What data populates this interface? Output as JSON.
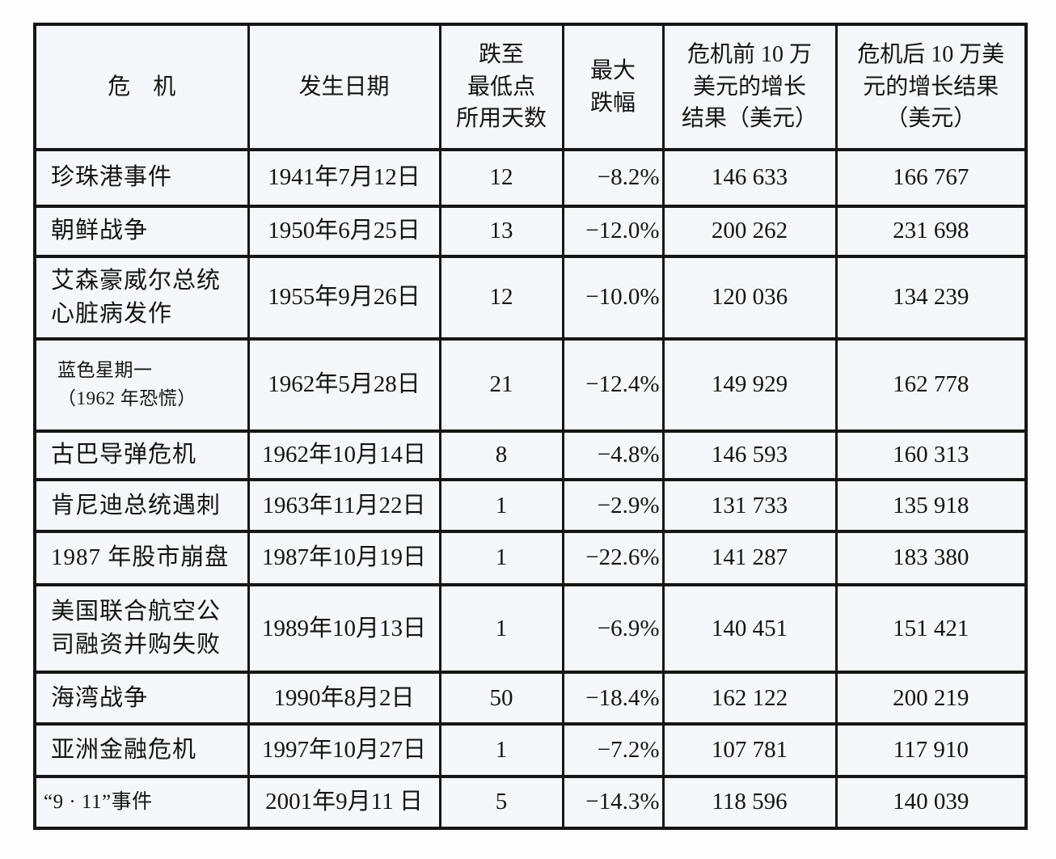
{
  "page": {
    "background_color": "#fdfdfe",
    "cell_background_color": "#f6f7fa",
    "border_color": "#161616",
    "text_color": "#141414"
  },
  "table": {
    "headers": [
      {
        "id": "crisis",
        "label": "危　机"
      },
      {
        "id": "date",
        "label": "发生日期"
      },
      {
        "id": "days",
        "label": "跌至\n最低点\n所用天数"
      },
      {
        "id": "drop",
        "label": "最大\n跌幅"
      },
      {
        "id": "before",
        "label": "危机前 10 万\n美元的增长\n结果（美元）"
      },
      {
        "id": "after",
        "label": "危机后 10 万美\n元的增长结果\n（美元）"
      }
    ],
    "rows": [
      {
        "crisis": "珍珠港事件",
        "date": "1941年7月12日",
        "days": "12",
        "drop": "−8.2%",
        "before": "146 633",
        "after": "166 767",
        "size": "normal"
      },
      {
        "crisis": "朝鲜战争",
        "date": "1950年6月25日",
        "days": "13",
        "drop": "−12.0%",
        "before": "200 262",
        "after": "231 698",
        "size": "normal"
      },
      {
        "crisis": "艾森豪威尔总统\n心脏病发作",
        "date": "1955年9月26日",
        "days": "12",
        "drop": "−10.0%",
        "before": "120 036",
        "after": "134 239",
        "size": "normal"
      },
      {
        "crisis": "蓝色星期一\n（1962 年恐慌）",
        "date": "1962年5月28日",
        "days": "21",
        "drop": "−12.4%",
        "before": "149 929",
        "after": "162 778",
        "size": "small"
      },
      {
        "crisis": "古巴导弹危机",
        "date": "1962年10月14日",
        "days": "8",
        "drop": "−4.8%",
        "before": "146 593",
        "after": "160 313",
        "size": "normal"
      },
      {
        "crisis": "肯尼迪总统遇刺",
        "date": "1963年11月22日",
        "days": "1",
        "drop": "−2.9%",
        "before": "131 733",
        "after": "135 918",
        "size": "normal"
      },
      {
        "crisis": "1987 年股市崩盘",
        "date": "1987年10月19日",
        "days": "1",
        "drop": "−22.6%",
        "before": "141 287",
        "after": "183 380",
        "size": "normal"
      },
      {
        "crisis": "美国联合航空公\n司融资并购失败",
        "date": "1989年10月13日",
        "days": "1",
        "drop": "−6.9%",
        "before": "140 451",
        "after": "151 421",
        "size": "normal"
      },
      {
        "crisis": "海湾战争",
        "date": "1990年8月2日",
        "days": "50",
        "drop": "−18.4%",
        "before": "162 122",
        "after": "200 219",
        "size": "normal"
      },
      {
        "crisis": "亚洲金融危机",
        "date": "1997年10月27日",
        "days": "1",
        "drop": "−7.2%",
        "before": "107 781",
        "after": "117 910",
        "size": "normal"
      },
      {
        "crisis": "“9 · 11”事件",
        "date": "2001年9月11 日",
        "days": "5",
        "drop": "−14.3%",
        "before": "118 596",
        "after": "140 039",
        "size": "mid"
      }
    ]
  }
}
